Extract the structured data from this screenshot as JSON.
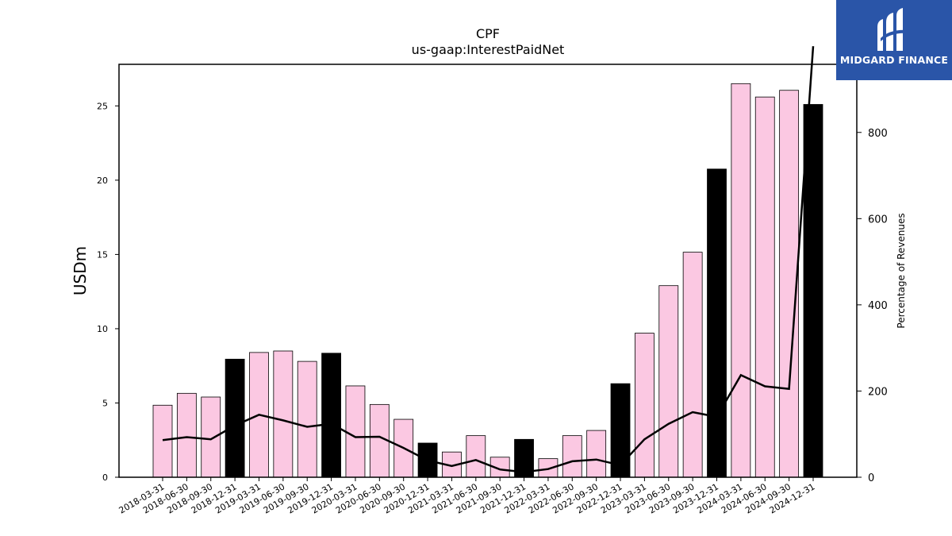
{
  "chart_data": {
    "type": "bar",
    "title": "CPF",
    "subtitle": "us-gaap:InterestPaidNet",
    "ylabel": "USDm",
    "y2label": "Percentage of Revenues",
    "ylim": [
      0,
      27.8
    ],
    "y2lim": [
      0,
      958
    ],
    "yticks": [
      0,
      5,
      10,
      15,
      20,
      25
    ],
    "y2ticks": [
      0,
      200,
      400,
      600,
      800
    ],
    "categories": [
      "2018-03-31",
      "2018-06-30",
      "2018-09-30",
      "2018-12-31",
      "2019-03-31",
      "2019-06-30",
      "2019-09-30",
      "2019-12-31",
      "2020-03-31",
      "2020-06-30",
      "2020-09-30",
      "2020-12-31",
      "2021-03-31",
      "2021-06-30",
      "2021-09-30",
      "2021-12-31",
      "2022-03-31",
      "2022-06-30",
      "2022-09-30",
      "2022-12-31",
      "2023-03-31",
      "2023-06-30",
      "2023-09-30",
      "2023-12-31",
      "2024-03-31",
      "2024-06-30",
      "2024-09-30",
      "2024-12-31"
    ],
    "values": [
      4.85,
      5.65,
      5.4,
      7.95,
      8.4,
      8.5,
      7.8,
      8.35,
      6.15,
      4.9,
      3.9,
      2.3,
      1.7,
      2.8,
      1.35,
      2.55,
      1.25,
      2.8,
      3.15,
      6.3,
      9.7,
      12.9,
      15.15,
      20.75,
      26.5,
      25.6,
      26.05,
      25.1
    ],
    "year_end": [
      false,
      false,
      false,
      true,
      false,
      false,
      false,
      true,
      false,
      false,
      false,
      true,
      false,
      false,
      false,
      true,
      false,
      false,
      false,
      true,
      false,
      false,
      false,
      true,
      false,
      false,
      false,
      true
    ],
    "line_values": [
      86,
      93,
      88,
      120,
      145,
      132,
      117,
      124,
      93,
      94,
      68,
      39,
      26,
      40,
      18,
      12,
      19,
      37,
      41,
      28,
      88,
      124,
      151,
      140,
      237,
      211,
      205,
      1000
    ],
    "colors": {
      "quarter": "#fbc8e2",
      "year_end": "#000000",
      "line": "#000000"
    }
  },
  "logo": {
    "text": "MIDGARD FINANCE",
    "icon": "midgard-logo-icon",
    "color": "#2a55a8"
  }
}
